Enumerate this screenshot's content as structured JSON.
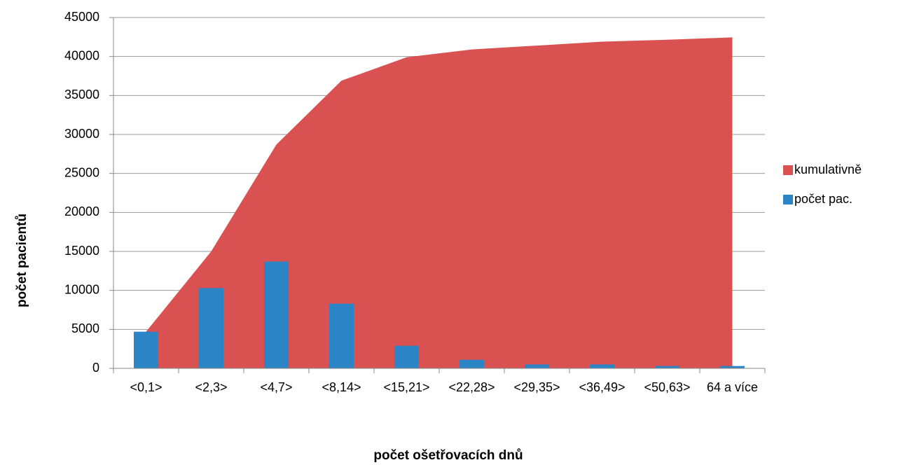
{
  "chart_data": {
    "type": "combo",
    "categories": [
      "<0,1>",
      "<2,3>",
      "<4,7>",
      "<8,14>",
      "<15,21>",
      "<22,28>",
      "<29,35>",
      "<36,49>",
      "<50,63>",
      "64 a více"
    ],
    "series": [
      {
        "name": "kumulativně",
        "type": "area",
        "color": "#d95150",
        "values": [
          4700,
          15000,
          28700,
          36900,
          39900,
          40900,
          41400,
          41900,
          42150,
          42450
        ]
      },
      {
        "name": "počet pac.",
        "type": "bar",
        "color": "#2b84c6",
        "values": [
          4700,
          10300,
          13700,
          8300,
          2900,
          1100,
          500,
          500,
          300,
          300
        ]
      }
    ],
    "x_label": "počet ošetřovacích dnů",
    "y_label": "počet pacientů",
    "ylim": [
      0,
      45000
    ],
    "yticks": [
      0,
      5000,
      10000,
      15000,
      20000,
      25000,
      30000,
      35000,
      40000,
      45000
    ],
    "grid": true,
    "legend": "right"
  }
}
